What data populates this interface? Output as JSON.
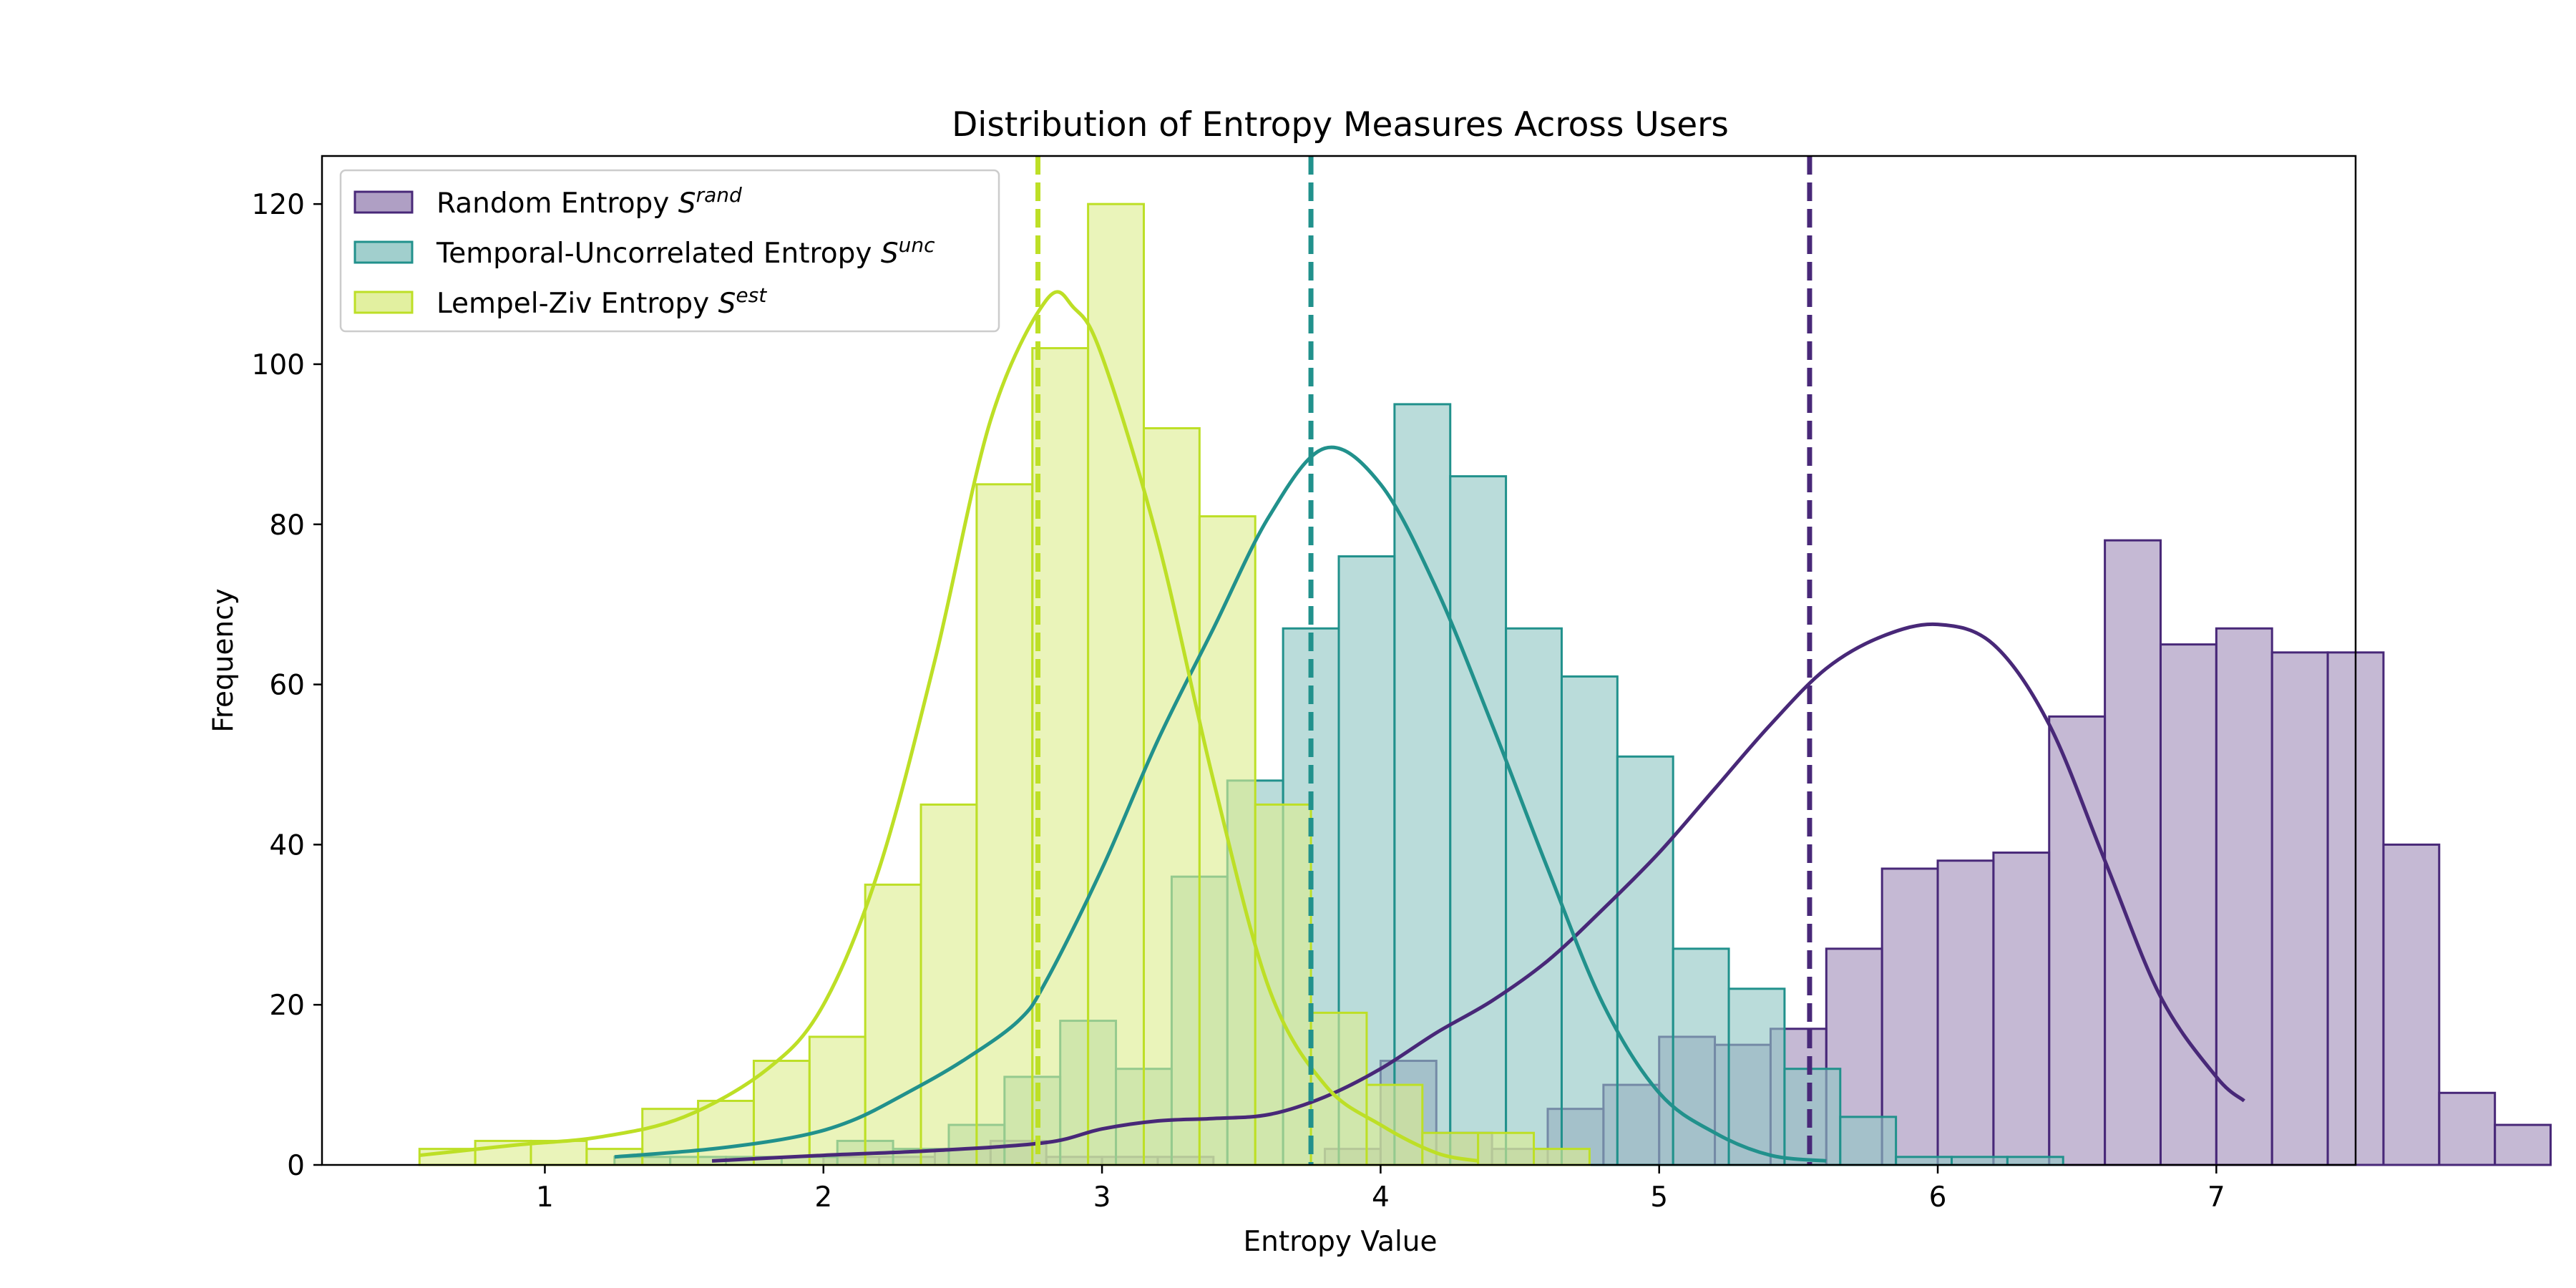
{
  "chart_data": {
    "type": "bar",
    "title": "Distribution of Entropy Measures Across Users",
    "xlabel": "Entropy Value",
    "ylabel": "Frequency",
    "xlim": [
      0.2,
      7.5
    ],
    "ylim": [
      0,
      126
    ],
    "xticks": [
      1,
      2,
      3,
      4,
      5,
      6,
      7
    ],
    "yticks": [
      0,
      20,
      40,
      60,
      80,
      100,
      120
    ],
    "grid": false,
    "legend_position": "top-left",
    "series": [
      {
        "name": "Random Entropy S",
        "name_base": "Random Entropy ",
        "symbol": "S",
        "superscript": "rand",
        "color": "#482878",
        "fill_color": "#a18eba",
        "bin_start": 1.6,
        "bin_width": 0.2,
        "counts": [
          0,
          0,
          1,
          1,
          2,
          3,
          1,
          1,
          1,
          0,
          0,
          2,
          13,
          4,
          2,
          7,
          10,
          16,
          15,
          17,
          27,
          37,
          38,
          39,
          56,
          78,
          65,
          67,
          64,
          64,
          40,
          9,
          5
        ],
        "mean": 5.54,
        "kde_x": [
          1.6,
          2.0,
          2.4,
          2.8,
          3.0,
          3.2,
          3.4,
          3.6,
          3.8,
          4.0,
          4.2,
          4.4,
          4.6,
          4.8,
          5.0,
          5.2,
          5.4,
          5.6,
          5.8,
          6.0,
          6.2,
          6.4,
          6.6,
          6.8,
          7.0,
          7.1
        ],
        "kde_y": [
          0.5,
          1.2,
          1.8,
          2.8,
          4.5,
          5.5,
          5.8,
          6.3,
          8.5,
          12,
          16.5,
          20.5,
          25.5,
          32,
          39,
          47,
          55,
          62,
          66,
          67.5,
          65,
          55,
          38,
          21,
          11,
          8
        ]
      },
      {
        "name": "Temporal-Uncorrelated Entropy S",
        "name_base": "Temporal-Uncorrelated Entropy ",
        "symbol": "S",
        "superscript": "unc",
        "color": "#21918c",
        "fill_color": "#90c7c4",
        "bin_start": 1.25,
        "bin_width": 0.2,
        "counts": [
          1,
          1,
          1,
          1,
          3,
          2,
          5,
          11,
          18,
          12,
          36,
          48,
          67,
          76,
          95,
          86,
          67,
          61,
          51,
          27,
          22,
          12,
          6,
          1,
          1,
          1
        ],
        "mean": 3.75,
        "kde_x": [
          1.25,
          1.6,
          1.9,
          2.1,
          2.3,
          2.5,
          2.7,
          2.8,
          3.0,
          3.2,
          3.4,
          3.6,
          3.8,
          4.0,
          4.2,
          4.4,
          4.6,
          4.8,
          5.0,
          5.2,
          5.4,
          5.6
        ],
        "kde_y": [
          1,
          2,
          3.5,
          5.5,
          9,
          13,
          18,
          23,
          37,
          53,
          67,
          81,
          89.5,
          85,
          72,
          55,
          37,
          20,
          9,
          4,
          1.2,
          0.5
        ]
      },
      {
        "name": "Lempel-Ziv Entropy S",
        "name_base": "Lempel-Ziv Entropy ",
        "symbol": "S",
        "superscript": "est",
        "color": "#bddf26",
        "fill_color": "#dded8f",
        "bin_start": 0.55,
        "bin_width": 0.2,
        "counts": [
          2,
          3,
          3,
          2,
          7,
          8,
          13,
          16,
          35,
          45,
          85,
          102,
          120,
          92,
          81,
          45,
          19,
          10,
          4,
          4,
          2
        ],
        "mean": 2.77,
        "kde_x": [
          0.55,
          0.9,
          1.2,
          1.5,
          1.8,
          2.0,
          2.2,
          2.4,
          2.6,
          2.8,
          2.9,
          3.0,
          3.2,
          3.4,
          3.6,
          3.8,
          4.0,
          4.2,
          4.35
        ],
        "kde_y": [
          1.2,
          2.5,
          3.5,
          6,
          12,
          20,
          37,
          63,
          93,
          108,
          107,
          101,
          78,
          48,
          22,
          10,
          5,
          1.5,
          0.5
        ]
      }
    ]
  }
}
